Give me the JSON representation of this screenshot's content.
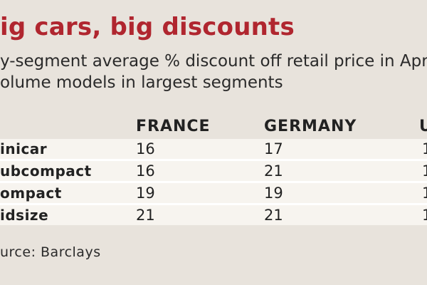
{
  "title": "ig cars, big discounts",
  "subtitle_lines": [
    "y-segment average % discount off retail price in April on",
    "olume models in largest segments"
  ],
  "source": "urce: Barclays",
  "chart_data": {
    "type": "table",
    "columns": [
      "FRANCE",
      "GERMANY",
      "U"
    ],
    "rows": [
      {
        "label": "inicar",
        "values": [
          "16",
          "17",
          "1"
        ]
      },
      {
        "label": "ubcompact",
        "values": [
          "16",
          "21",
          "1"
        ]
      },
      {
        "label": "ompact",
        "values": [
          "19",
          "19",
          "1"
        ]
      },
      {
        "label": "idsize",
        "values": [
          "21",
          "21",
          "1"
        ]
      }
    ]
  },
  "colors": {
    "title": "#b0262f",
    "background": "#e8e3dc",
    "row_shade": "#f7f4ef"
  }
}
